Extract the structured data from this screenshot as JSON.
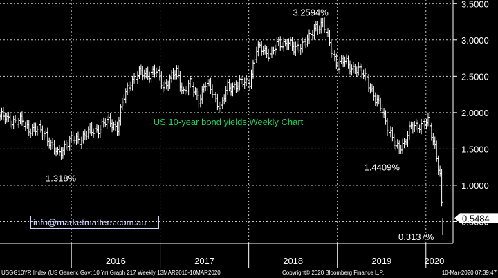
{
  "chart_data": {
    "type": "line",
    "title": "US 10-year bond yields Weekly Chart",
    "xlabel": "",
    "ylabel": "",
    "x_ticks": [
      "2016",
      "2017",
      "2018",
      "2019",
      "2020"
    ],
    "y_ticks": [
      "0.5000",
      "1.0000",
      "1.5000",
      "2.0000",
      "2.5000",
      "3.0000",
      "3.5000"
    ],
    "ylim": [
      0.2,
      3.55
    ],
    "xlim": [
      "2015-03-13",
      "2020-03-10"
    ],
    "grid": true,
    "series": [
      {
        "values": [
          [
            "2015-03-13",
            1.95
          ],
          [
            "2015-04-10",
            1.9
          ],
          [
            "2015-05-15",
            1.9
          ],
          [
            "2015-06-12",
            1.85
          ],
          [
            "2015-07-10",
            1.8
          ],
          [
            "2015-08-14",
            1.75
          ],
          [
            "2015-09-18",
            1.72
          ],
          [
            "2015-10-16",
            1.5
          ],
          [
            "2015-11-06",
            1.42
          ],
          [
            "2015-12-04",
            1.55
          ],
          [
            "2016-01-08",
            1.62
          ],
          [
            "2016-02-05",
            1.65
          ],
          [
            "2016-03-04",
            1.7
          ],
          [
            "2016-04-01",
            1.75
          ],
          [
            "2016-05-06",
            1.82
          ],
          [
            "2016-06-10",
            1.88
          ],
          [
            "2016-07-08",
            1.8
          ],
          [
            "2016-08-05",
            2.2
          ],
          [
            "2016-09-02",
            2.45
          ],
          [
            "2016-10-07",
            2.52
          ],
          [
            "2016-11-04",
            2.55
          ],
          [
            "2016-12-16",
            2.55
          ],
          [
            "2017-01-13",
            2.38
          ],
          [
            "2017-02-10",
            2.45
          ],
          [
            "2017-03-10",
            2.55
          ],
          [
            "2017-04-07",
            2.3
          ],
          [
            "2017-05-05",
            2.38
          ],
          [
            "2017-06-09",
            2.2
          ],
          [
            "2017-07-07",
            2.38
          ],
          [
            "2017-08-04",
            2.3
          ],
          [
            "2017-09-08",
            2.05
          ],
          [
            "2017-10-06",
            2.35
          ],
          [
            "2017-11-03",
            2.38
          ],
          [
            "2017-12-08",
            2.4
          ],
          [
            "2018-01-05",
            2.45
          ],
          [
            "2018-02-02",
            2.85
          ],
          [
            "2018-03-02",
            2.88
          ],
          [
            "2018-04-06",
            2.8
          ],
          [
            "2018-05-04",
            2.95
          ],
          [
            "2018-06-08",
            2.98
          ],
          [
            "2018-07-06",
            2.85
          ],
          [
            "2018-08-03",
            2.95
          ],
          [
            "2018-09-07",
            3.0
          ],
          [
            "2018-10-05",
            3.2
          ],
          [
            "2018-11-02",
            3.22
          ],
          [
            "2018-12-07",
            2.88
          ],
          [
            "2019-01-04",
            2.65
          ],
          [
            "2019-02-01",
            2.7
          ],
          [
            "2019-03-08",
            2.62
          ],
          [
            "2019-04-05",
            2.55
          ],
          [
            "2019-05-03",
            2.5
          ],
          [
            "2019-06-07",
            2.15
          ],
          [
            "2019-07-05",
            2.05
          ],
          [
            "2019-08-02",
            1.75
          ],
          [
            "2019-08-30",
            1.5
          ],
          [
            "2019-10-04",
            1.6
          ],
          [
            "2019-11-01",
            1.78
          ],
          [
            "2019-12-06",
            1.85
          ],
          [
            "2020-01-10",
            1.85
          ],
          [
            "2020-02-07",
            1.55
          ],
          [
            "2020-02-28",
            1.15
          ],
          [
            "2020-03-06",
            0.71
          ],
          [
            "2020-03-10",
            0.5484
          ]
        ]
      }
    ],
    "annotations": [
      {
        "label": "1.318%",
        "x": "2016-01-15",
        "y": 1.318
      },
      {
        "label": "3.2594%",
        "x": "2018-11-09",
        "y": 3.2594
      },
      {
        "label": "1.4409%",
        "x": "2019-08-30",
        "y": 1.4409
      },
      {
        "label": "0.3137%",
        "x": "2020-03-09",
        "y": 0.3137
      }
    ],
    "last_value_label": "0.5484"
  },
  "watermark": "info@marketmatters.com.au",
  "footer": {
    "left": "USGG10YR Index (US Generic Govt 10 Yr) Graph 217  Weekly 13MAR2010-10MAR2020",
    "center": "Copyright© 2020 Bloomberg Finance L.P.",
    "right": "10-Mar-2020 07:39:47"
  }
}
